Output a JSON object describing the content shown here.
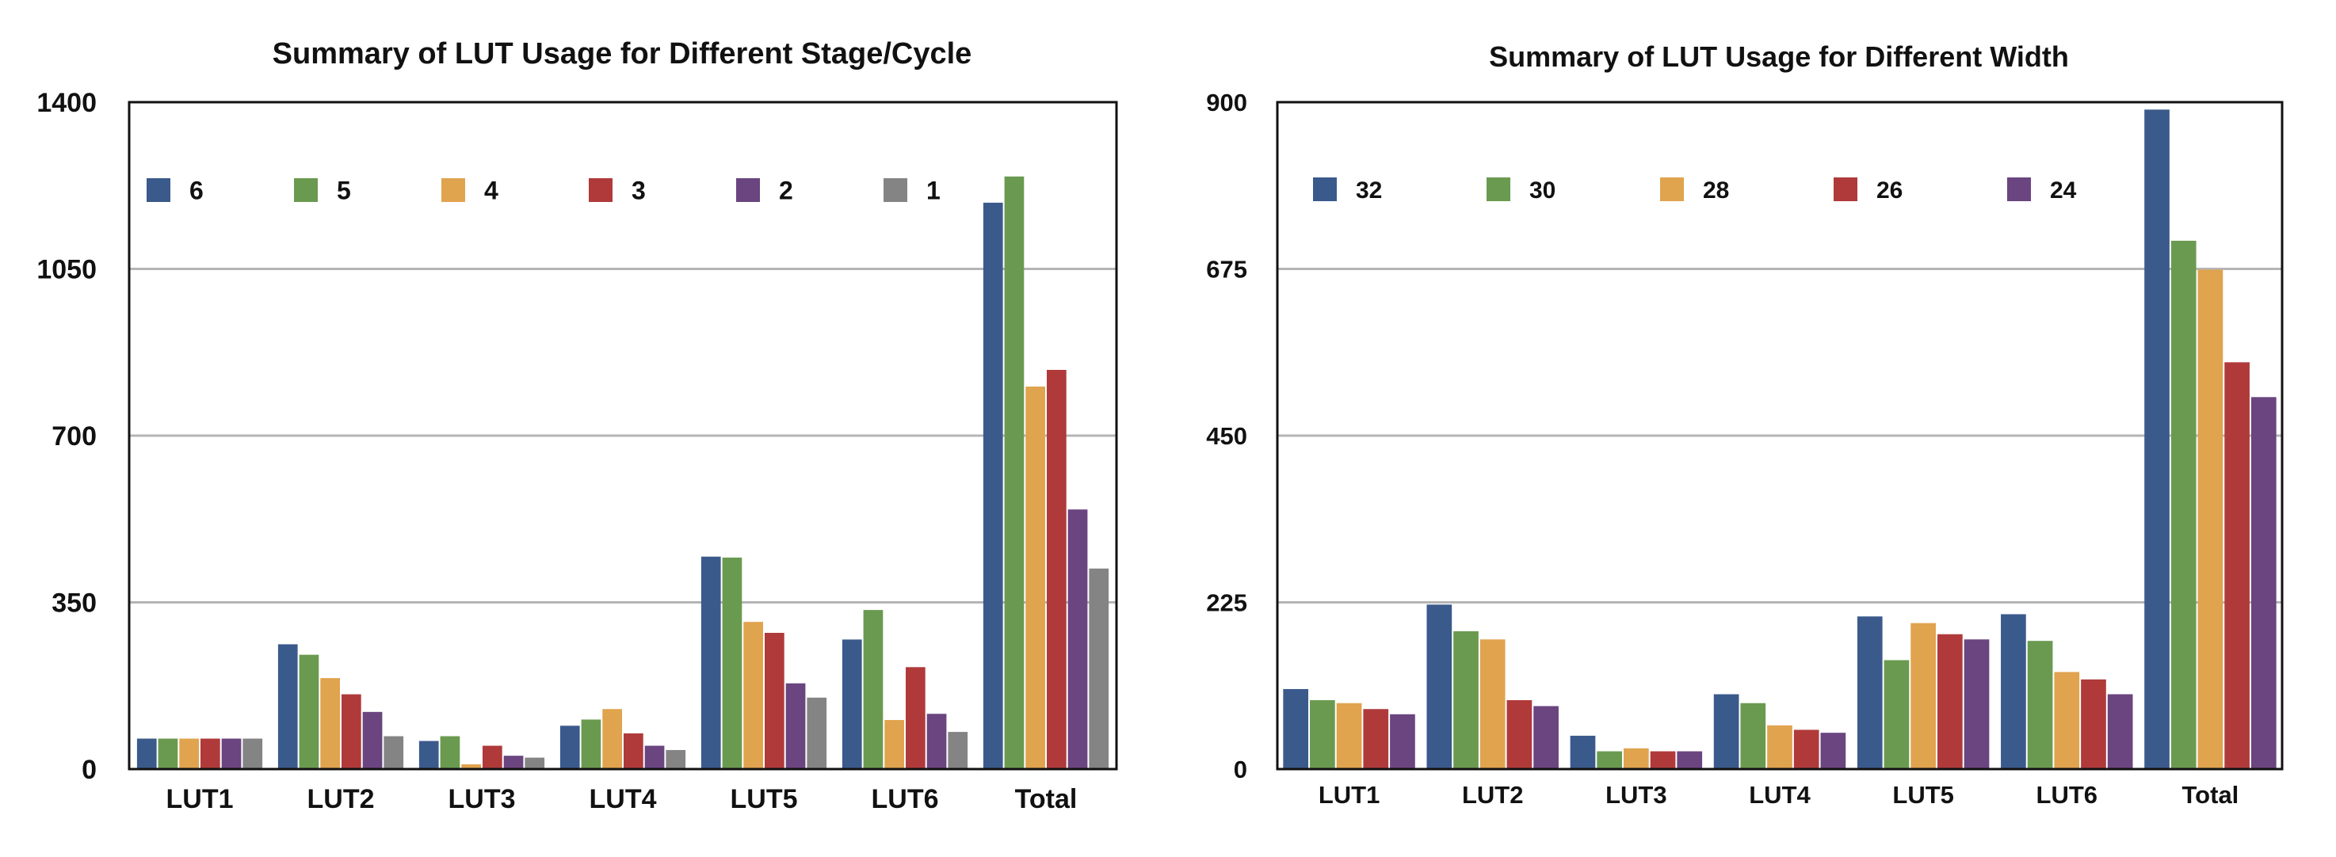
{
  "chart_data": [
    {
      "type": "bar",
      "title": "Summary of LUT Usage for Different Stage/Cycle",
      "xlabel": "",
      "ylabel": "",
      "ylim": [
        0,
        1400
      ],
      "yticks": [
        "0",
        "350",
        "700",
        "1050",
        "1400"
      ],
      "ytick_values": [
        0,
        350,
        700,
        1050,
        1400
      ],
      "grid": true,
      "legend_position": "top",
      "categories": [
        "LUT1",
        "LUT2",
        "LUT3",
        "LUT4",
        "LUT5",
        "LUT6",
        "Total"
      ],
      "series": [
        {
          "name": "6",
          "color": "#3b5a8c",
          "values": [
            64,
            262,
            59,
            91,
            446,
            272,
            1189
          ]
        },
        {
          "name": "5",
          "color": "#6a9a50",
          "values": [
            64,
            240,
            69,
            104,
            444,
            334,
            1244
          ]
        },
        {
          "name": "4",
          "color": "#e0a34e",
          "values": [
            64,
            191,
            10,
            126,
            309,
            103,
            803
          ]
        },
        {
          "name": "3",
          "color": "#b03a3a",
          "values": [
            64,
            157,
            49,
            75,
            286,
            214,
            838
          ]
        },
        {
          "name": "2",
          "color": "#6a4580",
          "values": [
            64,
            120,
            28,
            49,
            180,
            116,
            545
          ]
        },
        {
          "name": "1",
          "color": "#848484",
          "values": [
            64,
            69,
            24,
            40,
            150,
            78,
            421
          ]
        }
      ]
    },
    {
      "type": "bar",
      "title": "Summary of LUT Usage for Different Width",
      "xlabel": "",
      "ylabel": "",
      "ylim": [
        0,
        900
      ],
      "yticks": [
        "0",
        "225",
        "450",
        "675",
        "900"
      ],
      "ytick_values": [
        0,
        225,
        450,
        675,
        900
      ],
      "grid": true,
      "legend_position": "top",
      "categories": [
        "LUT1",
        "LUT2",
        "LUT3",
        "LUT4",
        "LUT5",
        "LUT6",
        "Total"
      ],
      "series": [
        {
          "name": "32",
          "color": "#3b5a8c",
          "values": [
            108,
            222,
            45,
            101,
            206,
            209,
            890
          ]
        },
        {
          "name": "30",
          "color": "#6a9a50",
          "values": [
            93,
            186,
            24,
            89,
            147,
            173,
            713
          ]
        },
        {
          "name": "28",
          "color": "#e0a34e",
          "values": [
            89,
            175,
            28,
            59,
            197,
            131,
            674
          ]
        },
        {
          "name": "26",
          "color": "#b03a3a",
          "values": [
            81,
            93,
            24,
            53,
            182,
            121,
            549
          ]
        },
        {
          "name": "24",
          "color": "#6a4580",
          "values": [
            74,
            85,
            24,
            49,
            175,
            101,
            502
          ]
        }
      ]
    }
  ]
}
